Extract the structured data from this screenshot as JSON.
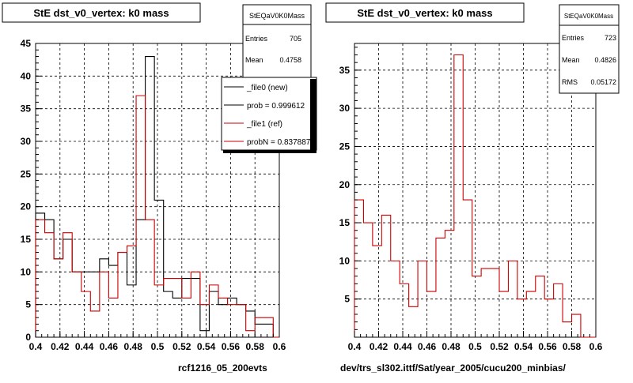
{
  "left": {
    "title": "StE dst_v0_vertex: k0 mass",
    "caption": "rcf1216_05_200evts",
    "stats": {
      "name": "StEQaV0K0Mass",
      "rows": [
        {
          "label": "Entries",
          "value": "705"
        },
        {
          "label": "Mean",
          "value": "0.4758"
        }
      ]
    },
    "legend": [
      {
        "text": "_file0 (new)",
        "color": "#000000"
      },
      {
        "text": "prob = 0.999612",
        "color": "#000000"
      },
      {
        "text": "_file1 (ref)",
        "color": "#cc0000"
      },
      {
        "text": "probN = 0.837887",
        "color": "#cc0000"
      }
    ]
  },
  "right": {
    "title": "StE dst_v0_vertex: k0 mass",
    "caption": "dev/trs_sl302.ittf/Sat/year_2005/cucu200_minbias/",
    "stats": {
      "name": "StEQaV0K0Mass",
      "rows": [
        {
          "label": "Entries",
          "value": "723"
        },
        {
          "label": "Mean",
          "value": "0.4826"
        },
        {
          "label": "RMS",
          "value": "0.05172"
        }
      ]
    }
  },
  "colors": {
    "new": "#000000",
    "ref": "#cc0000",
    "grid": "#000000"
  },
  "chart_data": [
    {
      "type": "histogram",
      "title": "StE dst_v0_vertex: k0 mass",
      "xlim": [
        0.4,
        0.6
      ],
      "ylim": [
        0,
        45
      ],
      "bin_edges_start": 0.4,
      "bin_width": 0.0075,
      "x_ticks": [
        "0.4",
        "0.42",
        "0.44",
        "0.46",
        "0.48",
        "0.5",
        "0.52",
        "0.54",
        "0.56",
        "0.58",
        "0.6"
      ],
      "y_ticks": [
        "0",
        "5",
        "10",
        "15",
        "20",
        "25",
        "30",
        "35",
        "40",
        "45"
      ],
      "grid": true,
      "series": [
        {
          "name": "_file0 (new)",
          "color": "#000000",
          "values": [
            19,
            18,
            12,
            15,
            10,
            10,
            10,
            12,
            11,
            13,
            8,
            18,
            43,
            21,
            7,
            6,
            9,
            9,
            1,
            7,
            5,
            6,
            5,
            4,
            2,
            2,
            0
          ]
        },
        {
          "name": "_file1 (ref)",
          "color": "#cc0000",
          "values": [
            18,
            16,
            12,
            16,
            10,
            7,
            4,
            10,
            6,
            13,
            14,
            37,
            18,
            8,
            9,
            9,
            6,
            10,
            5,
            8,
            6,
            5,
            5,
            1,
            3,
            3,
            0
          ]
        }
      ]
    },
    {
      "type": "histogram",
      "title": "StE dst_v0_vertex: k0 mass",
      "xlim": [
        0.4,
        0.6
      ],
      "ylim": [
        0,
        38.5
      ],
      "bin_edges_start": 0.4,
      "bin_width": 0.0075,
      "x_ticks": [
        "0.4",
        "0.42",
        "0.44",
        "0.46",
        "0.48",
        "0.5",
        "0.52",
        "0.54",
        "0.56",
        "0.58",
        "0.6"
      ],
      "y_ticks": [
        "5",
        "10",
        "15",
        "20",
        "25",
        "30",
        "35"
      ],
      "grid": true,
      "series": [
        {
          "color": "#cc0000",
          "values": [
            18,
            15,
            12,
            16,
            10,
            7,
            4,
            10,
            6,
            13,
            14,
            37,
            18,
            8,
            9,
            9,
            6,
            10,
            5,
            6,
            8,
            5,
            7,
            2,
            3,
            0,
            0
          ]
        }
      ]
    }
  ]
}
